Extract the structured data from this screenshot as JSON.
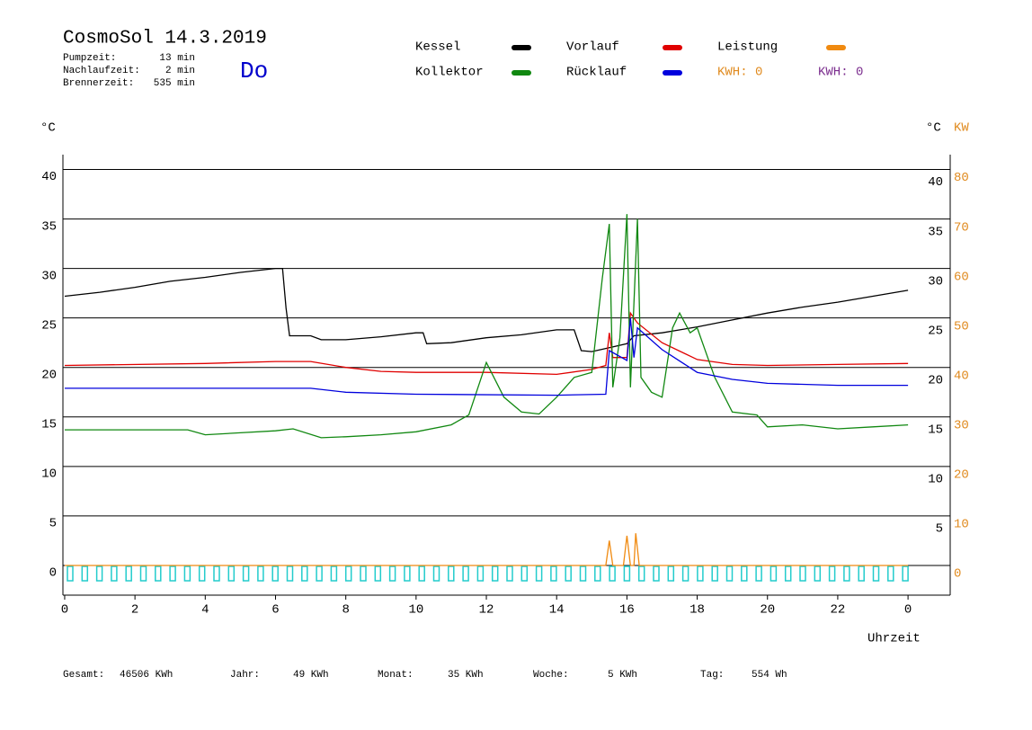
{
  "chart_data": {
    "type": "line",
    "title": "CosmoSol 14.3.2019",
    "day": "Do",
    "info": [
      {
        "label": "Pumpzeit:",
        "value": "13 min"
      },
      {
        "label": "Nachlaufzeit:",
        "value": "2 min"
      },
      {
        "label": "Brennerzeit:",
        "value": "535 min"
      }
    ],
    "kwh": [
      {
        "text": "KWH: 0",
        "color": "#e08a1e"
      },
      {
        "text": "KWH: 0",
        "color": "#7b2d8e"
      }
    ],
    "ylabel": "°C",
    "y2label_c": "°C",
    "y2label": "KW",
    "xlabel": "Uhrzeit",
    "xlim": [
      -0.05,
      25.2
    ],
    "ylim": [
      -3,
      41.5
    ],
    "y2lim": [
      -6,
      83
    ],
    "xticks": [
      0,
      2,
      4,
      6,
      8,
      10,
      12,
      14,
      16,
      18,
      20,
      22,
      {
        "value": 24,
        "label": "0"
      }
    ],
    "yticks": [
      0,
      5,
      10,
      15,
      20,
      25,
      30,
      35,
      40
    ],
    "yticks_right": [
      5,
      10,
      15,
      20,
      25,
      30,
      35,
      40
    ],
    "y2ticks": [
      0,
      10,
      20,
      30,
      40,
      50,
      60,
      70,
      80
    ],
    "grid": true,
    "series": [
      {
        "name": "Kessel",
        "color": "#000000",
        "x": [
          0,
          1,
          2,
          3,
          4,
          5,
          6,
          6.2,
          6.3,
          6.4,
          7,
          7.3,
          8,
          9,
          10,
          10.2,
          10.3,
          11,
          12,
          13,
          14,
          14.5,
          14.7,
          15,
          15.5,
          16,
          16.2,
          17,
          18,
          19,
          20,
          21,
          22,
          23,
          24
        ],
        "values": [
          27.2,
          27.6,
          28.1,
          28.7,
          29.1,
          29.6,
          30.0,
          30.0,
          26,
          23.2,
          23.2,
          22.8,
          22.8,
          23.1,
          23.5,
          23.5,
          22.4,
          22.5,
          23.0,
          23.3,
          23.8,
          23.8,
          21.7,
          21.6,
          22.0,
          22.4,
          23.2,
          23.5,
          24.1,
          24.8,
          25.5,
          26.1,
          26.6,
          27.2,
          27.8
        ]
      },
      {
        "name": "Vorlauf",
        "color": "#e00000",
        "x": [
          0,
          4,
          6,
          7,
          8,
          9,
          10,
          12,
          14,
          15,
          15.4,
          15.5,
          15.6,
          16,
          16.1,
          16.3,
          17,
          18,
          19,
          20,
          22,
          24
        ],
        "values": [
          20.2,
          20.4,
          20.6,
          20.6,
          20.0,
          19.6,
          19.5,
          19.5,
          19.3,
          19.8,
          20.2,
          23.5,
          21,
          21,
          25.5,
          24.5,
          22.5,
          20.8,
          20.3,
          20.2,
          20.3,
          20.4
        ]
      },
      {
        "name": "Leistung",
        "color": "#f08a10",
        "axis": "y2",
        "x": [
          0,
          15.4,
          15.5,
          15.6,
          15.9,
          16,
          16.1,
          16.2,
          16.25,
          16.35,
          24
        ],
        "values": [
          0,
          0,
          5,
          0,
          0,
          6,
          0,
          0,
          6.5,
          0,
          0
        ]
      },
      {
        "name": "Kollektor",
        "color": "#118811",
        "x": [
          0,
          2,
          3.5,
          4,
          5,
          6,
          6.5,
          7.3,
          8,
          9,
          10,
          11,
          11.5,
          12,
          12.5,
          13,
          13.5,
          14,
          14.5,
          15,
          15.3,
          15.5,
          15.6,
          15.8,
          16,
          16.1,
          16.3,
          16.4,
          16.7,
          17,
          17.3,
          17.5,
          17.8,
          18,
          18.5,
          19,
          19.7,
          20,
          21,
          22,
          23,
          24
        ],
        "values": [
          13.7,
          13.7,
          13.7,
          13.2,
          13.4,
          13.6,
          13.8,
          12.9,
          13.0,
          13.2,
          13.5,
          14.2,
          15.2,
          20.5,
          17.0,
          15.5,
          15.3,
          17.0,
          19,
          19.5,
          29,
          34.5,
          18,
          23,
          35.5,
          18,
          35,
          19,
          17.5,
          17.0,
          24.0,
          25.5,
          23.5,
          24.0,
          19,
          15.5,
          15.2,
          14.0,
          14.2,
          13.8,
          14.0,
          14.2
        ]
      },
      {
        "name": "Rücklauf",
        "color": "#0000dd",
        "x": [
          0,
          4,
          7,
          8,
          10,
          14,
          15.4,
          15.5,
          16,
          16.1,
          16.2,
          16.3,
          17,
          18,
          19,
          20,
          22,
          24
        ],
        "values": [
          17.9,
          17.9,
          17.9,
          17.5,
          17.3,
          17.2,
          17.3,
          21.7,
          20.7,
          25,
          21,
          24,
          21.8,
          19.5,
          18.8,
          18.4,
          18.2,
          18.2
        ]
      }
    ],
    "totals": [
      {
        "label": "Gesamt:",
        "value": "46506 KWh"
      },
      {
        "label": "Jahr:",
        "value": "49 KWh"
      },
      {
        "label": "Monat:",
        "value": "35 KWh"
      },
      {
        "label": "Woche:",
        "value": "5 KWh"
      },
      {
        "label": "Tag:",
        "value": "554 Wh"
      }
    ]
  }
}
